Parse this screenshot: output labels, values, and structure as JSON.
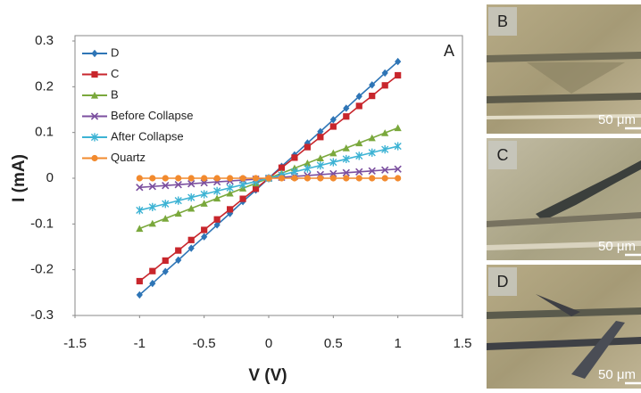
{
  "chart_data": {
    "type": "line",
    "panel_label": "A",
    "xlabel": "V (V)",
    "ylabel": "I (mA)",
    "xlim": [
      -1.5,
      1.5
    ],
    "xticks": [
      -1.5,
      -1,
      -0.5,
      0,
      0.5,
      1,
      1.5
    ],
    "ylim": [
      -0.3,
      0.3
    ],
    "yticks": [
      0.3,
      0.2,
      0.1,
      0,
      -0.1,
      -0.2,
      -0.3
    ],
    "grid": false,
    "legend": "top-left",
    "x": [
      -1,
      -0.9,
      -0.8,
      -0.7,
      -0.6,
      -0.5,
      -0.4,
      -0.3,
      -0.2,
      -0.1,
      0,
      0.1,
      0.2,
      0.3,
      0.4,
      0.5,
      0.6,
      0.7,
      0.8,
      0.9,
      1
    ],
    "series": [
      {
        "name": "D",
        "color": "#2e75b6",
        "marker": "diamond",
        "values": [
          -0.255,
          -0.23,
          -0.204,
          -0.179,
          -0.153,
          -0.128,
          -0.102,
          -0.077,
          -0.051,
          -0.026,
          0,
          0.026,
          0.051,
          0.077,
          0.102,
          0.128,
          0.153,
          0.179,
          0.204,
          0.23,
          0.255
        ]
      },
      {
        "name": "C",
        "color": "#c8262c",
        "marker": "square",
        "values": [
          -0.225,
          -0.203,
          -0.18,
          -0.158,
          -0.135,
          -0.113,
          -0.09,
          -0.068,
          -0.045,
          -0.023,
          0,
          0.023,
          0.045,
          0.068,
          0.09,
          0.113,
          0.135,
          0.158,
          0.18,
          0.203,
          0.225
        ]
      },
      {
        "name": "B",
        "color": "#7aa83c",
        "marker": "triangle",
        "values": [
          -0.11,
          -0.099,
          -0.088,
          -0.077,
          -0.066,
          -0.055,
          -0.044,
          -0.033,
          -0.022,
          -0.011,
          0,
          0.011,
          0.022,
          0.033,
          0.044,
          0.055,
          0.066,
          0.077,
          0.088,
          0.099,
          0.11
        ]
      },
      {
        "name": "Before Collapse",
        "color": "#7b4f9f",
        "marker": "x",
        "values": [
          -0.02,
          -0.018,
          -0.016,
          -0.014,
          -0.012,
          -0.01,
          -0.008,
          -0.006,
          -0.004,
          -0.002,
          0,
          0.002,
          0.004,
          0.006,
          0.008,
          0.01,
          0.012,
          0.014,
          0.016,
          0.018,
          0.02
        ]
      },
      {
        "name": "After Collapse",
        "color": "#3db3d4",
        "marker": "star",
        "values": [
          -0.07,
          -0.063,
          -0.056,
          -0.049,
          -0.042,
          -0.035,
          -0.028,
          -0.021,
          -0.014,
          -0.007,
          0,
          0.007,
          0.014,
          0.021,
          0.028,
          0.035,
          0.042,
          0.049,
          0.056,
          0.063,
          0.07
        ]
      },
      {
        "name": "Quartz",
        "color": "#f28a2e",
        "marker": "circle",
        "values": [
          0,
          0,
          0,
          0,
          0,
          0,
          0,
          0,
          0,
          0,
          0,
          0,
          0,
          0,
          0,
          0,
          0,
          0,
          0,
          0,
          0
        ]
      }
    ]
  },
  "panels": [
    {
      "label": "B",
      "scale": "50 μm"
    },
    {
      "label": "C",
      "scale": "50 μm"
    },
    {
      "label": "D",
      "scale": "50 μm"
    }
  ]
}
